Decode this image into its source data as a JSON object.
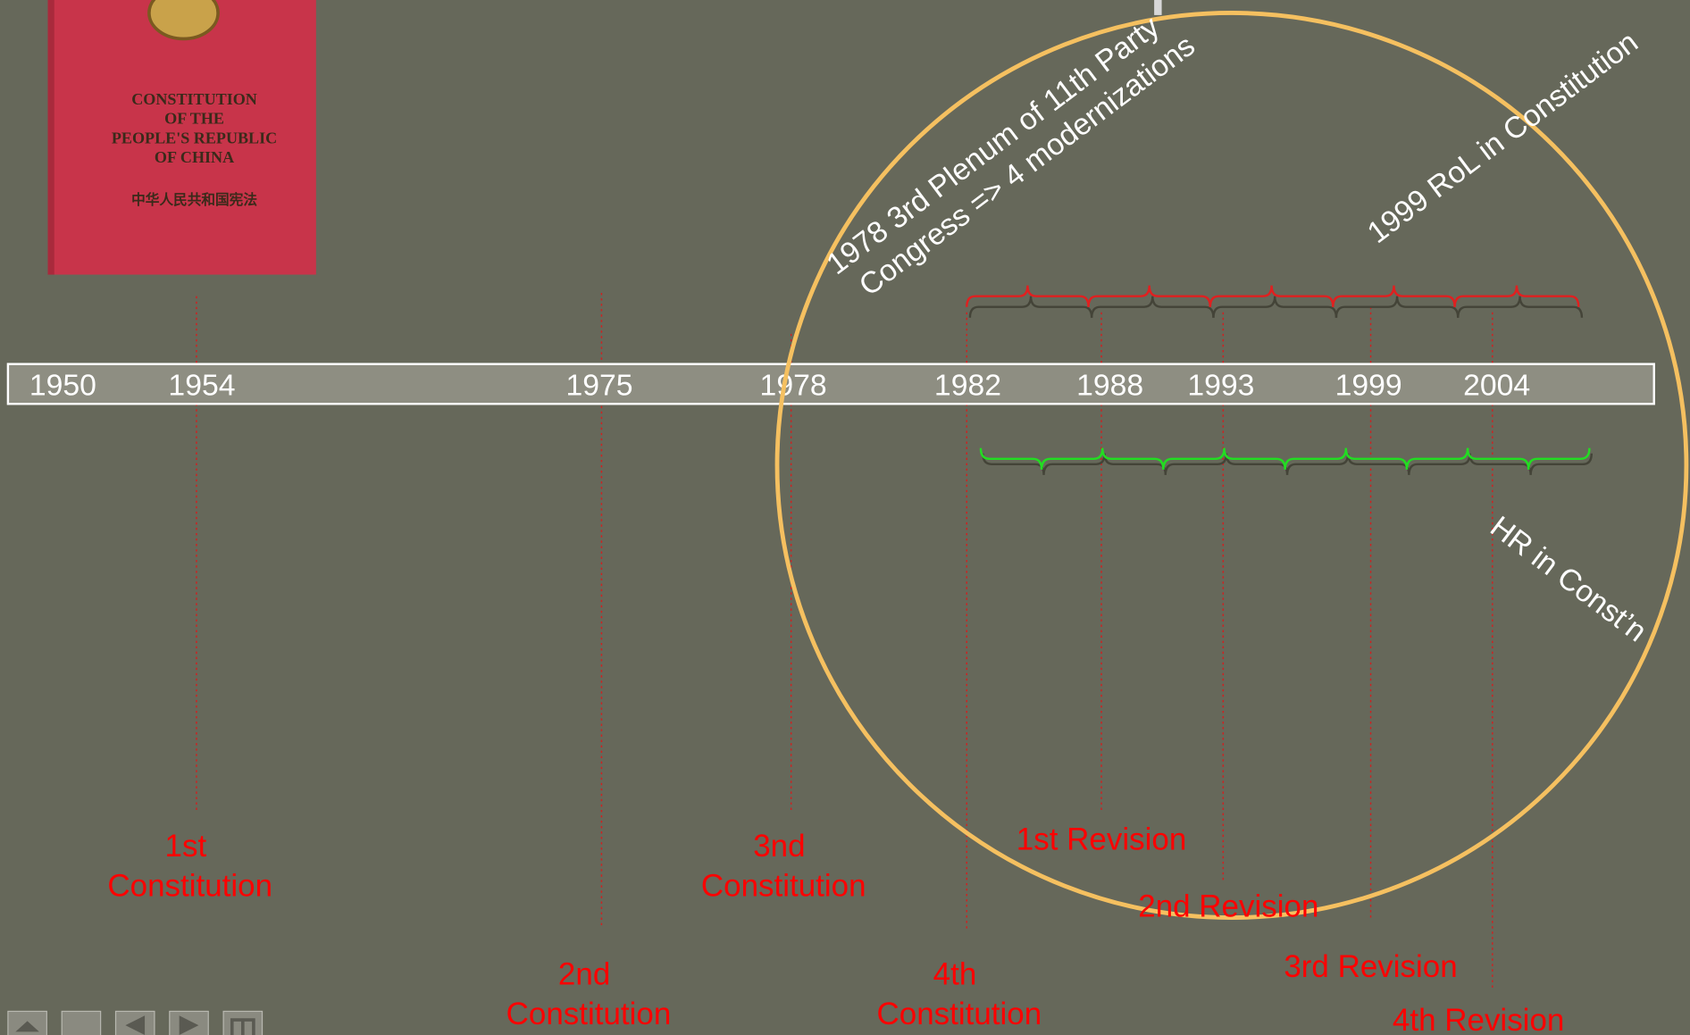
{
  "book": {
    "lines": [
      "CONSTITUTION",
      "OF THE",
      "PEOPLE'S REPUBLIC",
      "OF CHINA"
    ],
    "chinese": "中华人民共和国宪法"
  },
  "timeline": {
    "years": [
      "1950",
      "1954",
      "1975",
      "1978",
      "1982",
      "1988",
      "1993",
      "1999",
      "2004"
    ]
  },
  "events": [
    {
      "lines": [
        "1st",
        "Constitution"
      ]
    },
    {
      "lines": [
        "2nd",
        "Constitution"
      ]
    },
    {
      "lines": [
        "3nd",
        "Constitution"
      ]
    },
    {
      "lines": [
        "4th",
        "Constitution"
      ]
    },
    {
      "lines": [
        "1st Revision"
      ]
    },
    {
      "lines": [
        "2nd Revision"
      ]
    },
    {
      "lines": [
        "3rd Revision"
      ]
    },
    {
      "lines": [
        "4th Revision"
      ]
    }
  ],
  "annotations": [
    {
      "lines": [
        "1978 3rd Plenum of 11th Party",
        "Congress => 4 modernizations"
      ]
    },
    {
      "lines": [
        "1999 RoL in Constitution"
      ]
    },
    {
      "lines": [
        "HR in Const’n"
      ]
    }
  ]
}
